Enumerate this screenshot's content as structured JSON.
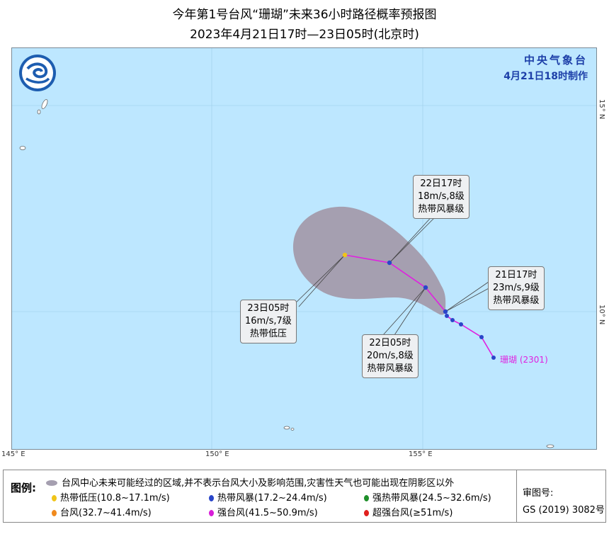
{
  "title": {
    "line1": "今年第1号台风“珊瑚”未来36小时路径概率预报图",
    "line2": "2023年4月21日17时—23日05时(北京时)"
  },
  "agency": {
    "name": "中央气象台",
    "issued": "4月21日18时制作"
  },
  "axes": {
    "lon_labels": [
      "145° E",
      "150° E",
      "155° E"
    ],
    "lat_labels": [
      "15° N",
      "10° N"
    ]
  },
  "track": {
    "storm_label": "珊瑚",
    "storm_code": "(2301)",
    "points": [
      {
        "time": "21日17时",
        "wind": "23m/s,9级",
        "category": "热带风暴级",
        "color": "#2a46c9"
      },
      {
        "time": "22日05时",
        "wind": "20m/s,8级",
        "category": "热带风暴级",
        "color": "#2a46c9"
      },
      {
        "time": "22日17时",
        "wind": "18m/s,8级",
        "category": "热带风暴级",
        "color": "#2a46c9"
      },
      {
        "time": "23日05时",
        "wind": "16m/s,7级",
        "category": "热带低压",
        "color": "#f0c419"
      }
    ],
    "past_color": "#2a46c9",
    "line_color": "#e020e0",
    "cone_color": "#a59fb0"
  },
  "legend": {
    "title": "图例:",
    "cone_text": "台风中心未来可能经过的区域,并不表示台风大小及影响范围,灾害性天气也可能出现在阴影区以外",
    "categories": [
      {
        "label": "热带低压(10.8~17.1m/s)",
        "color": "#f0c419"
      },
      {
        "label": "热带风暴(17.2~24.4m/s)",
        "color": "#2a46c9"
      },
      {
        "label": "强热带风暴(24.5~32.6m/s)",
        "color": "#1f8f2a"
      },
      {
        "label": "台风(32.7~41.4m/s)",
        "color": "#f08a1e"
      },
      {
        "label": "强台风(41.5~50.9m/s)",
        "color": "#d81ed8"
      },
      {
        "label": "超强台风(≥51m/s)",
        "color": "#e0201e"
      }
    ],
    "review_label": "审图号:",
    "review_number": "GS (2019) 3082号"
  }
}
